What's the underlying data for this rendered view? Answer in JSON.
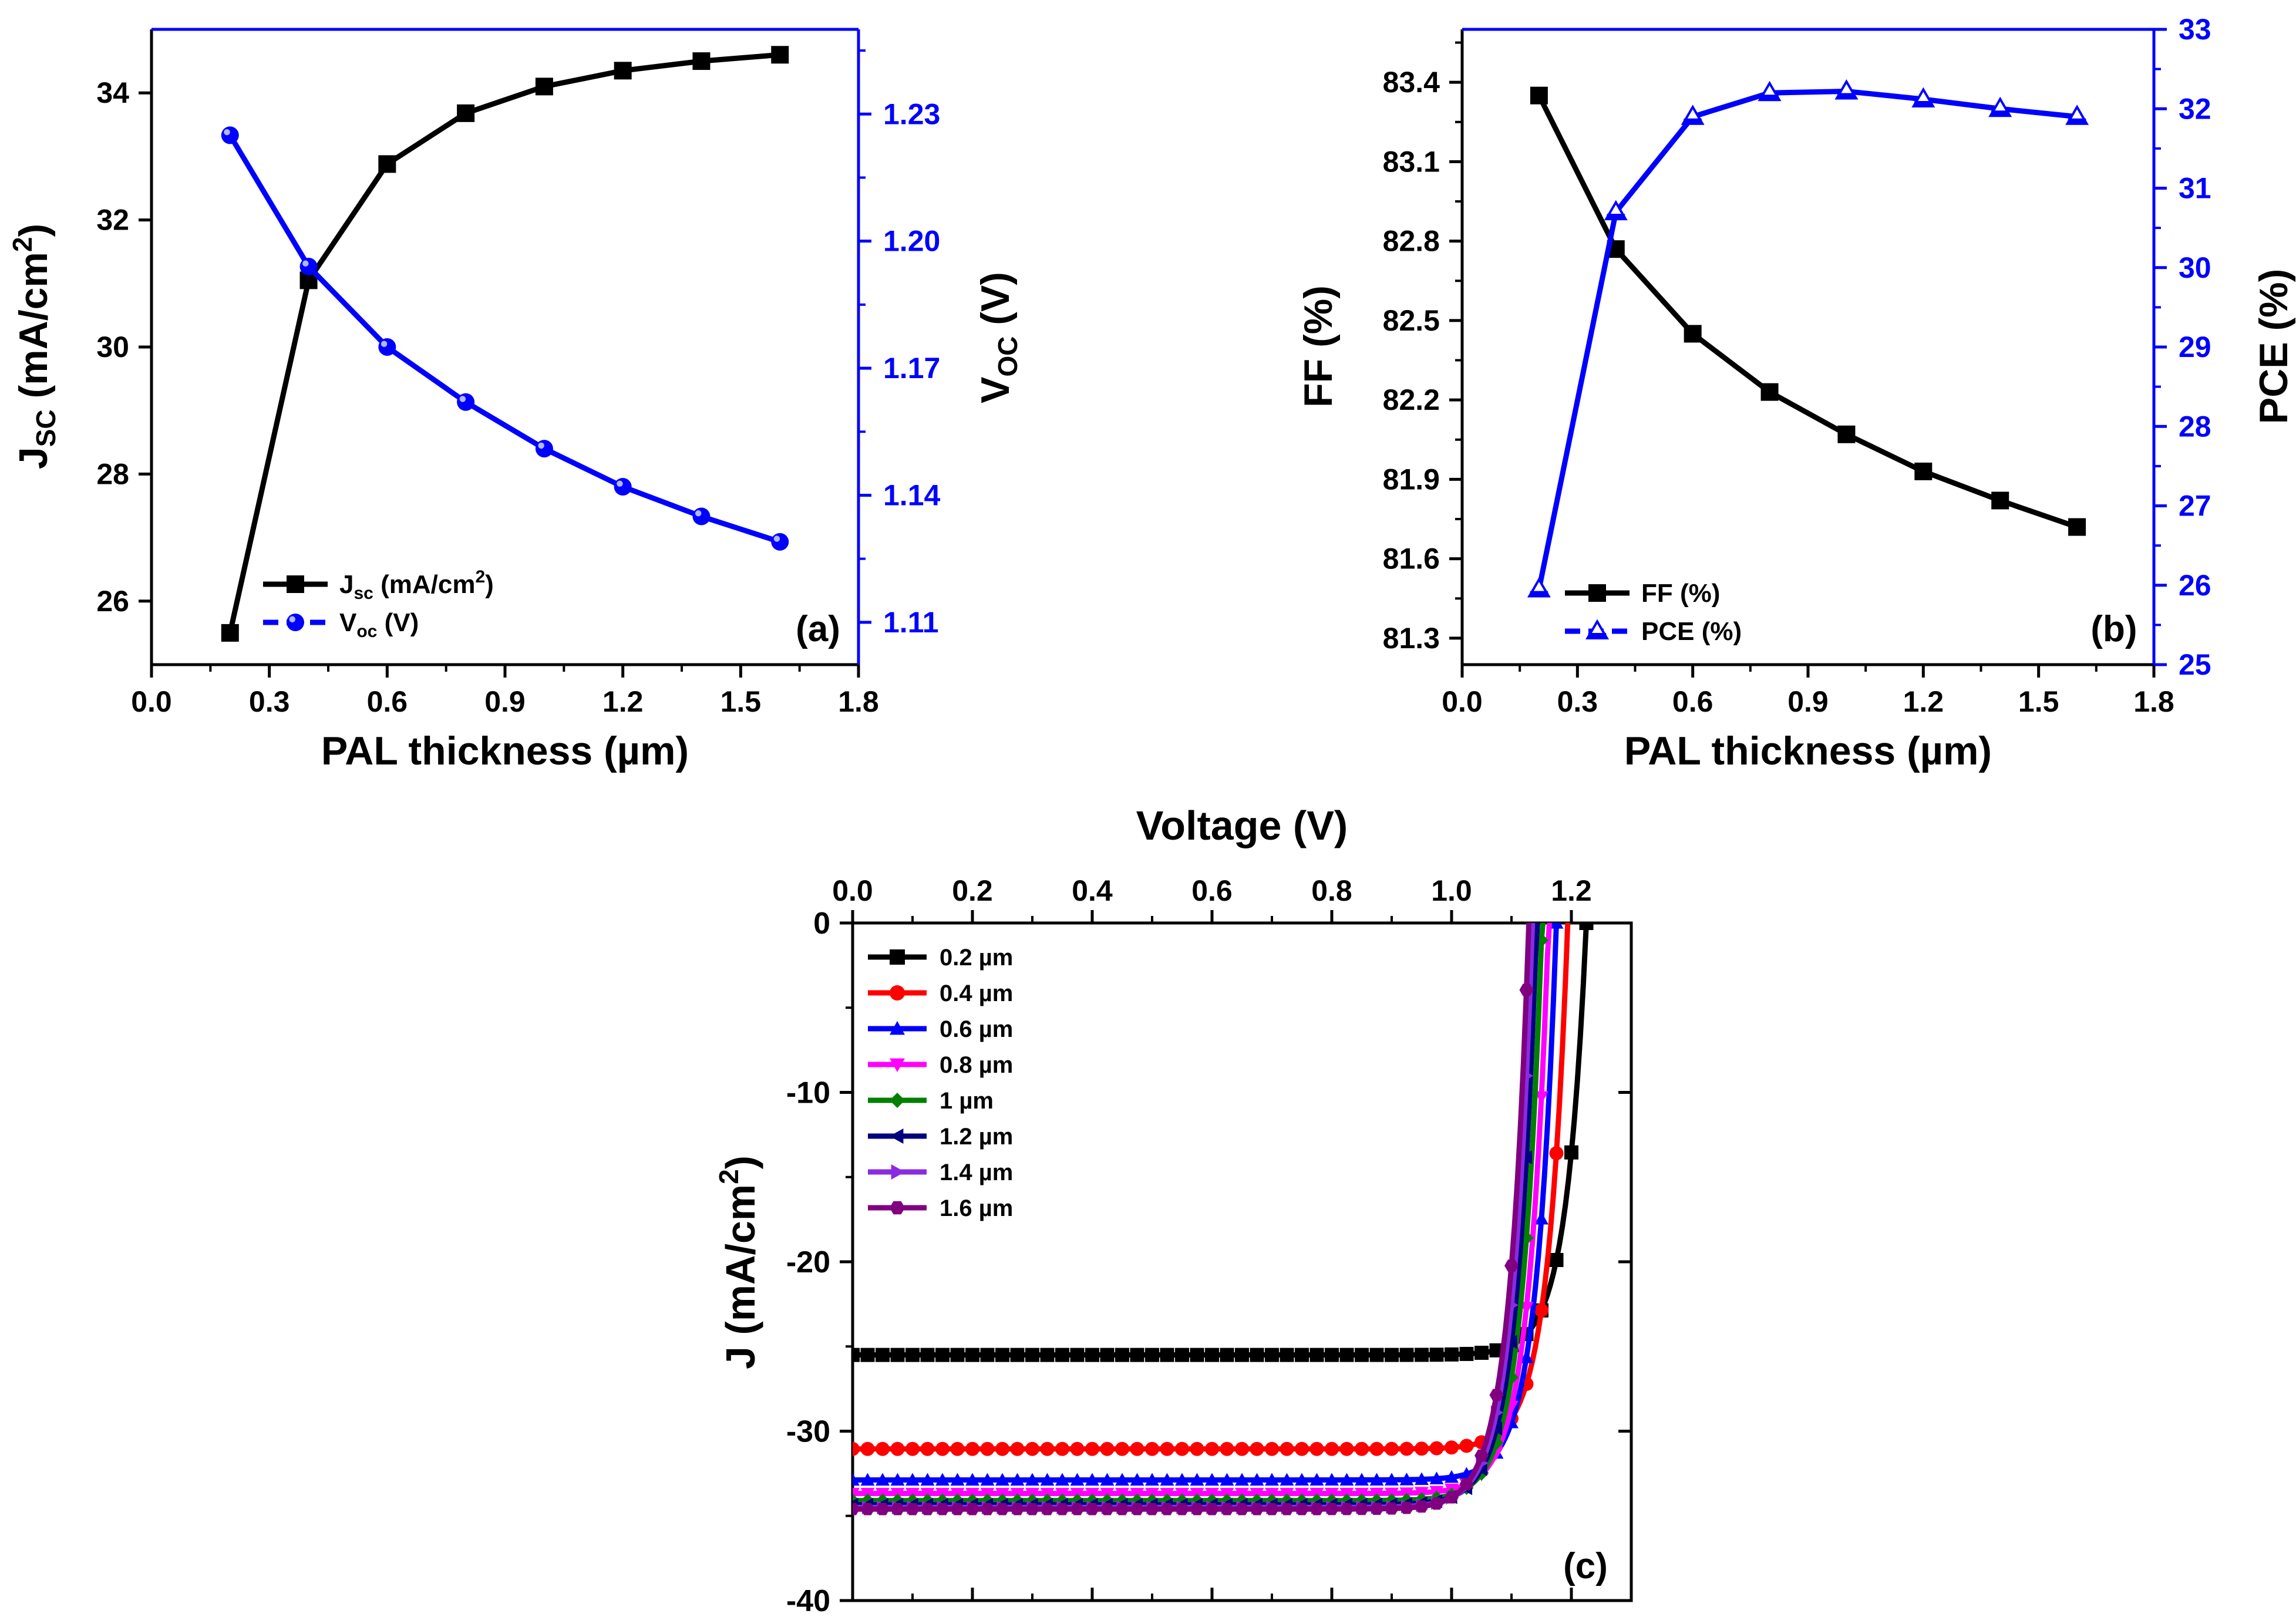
{
  "chart_data": [
    {
      "id": "a",
      "type": "line",
      "panel_label": "(a)",
      "xlabel": "PAL thickness (µm)",
      "ylabel": "J",
      "ylabel_sub": "SC",
      "ylabel_rest": " (mA/cm",
      "ylabel_sup": "2",
      "ylabel_end": ")",
      "y2label": "V",
      "y2label_sub": "OC",
      "y2label_rest": " (V)",
      "xlim": [
        0.0,
        1.8
      ],
      "xticks": [
        "0.0",
        "0.3",
        "0.6",
        "0.9",
        "1.2",
        "1.5",
        "1.8"
      ],
      "ylim": [
        25.0,
        35.0
      ],
      "yticks": [
        "26",
        "28",
        "30",
        "32",
        "34"
      ],
      "y2lim": [
        1.1,
        1.25
      ],
      "y2ticks": [
        "1.11",
        "1.14",
        "1.17",
        "1.20",
        "1.23"
      ],
      "legend_position": "bottom-left",
      "x": [
        0.2,
        0.4,
        0.6,
        0.8,
        1.0,
        1.2,
        1.4,
        1.6
      ],
      "series": [
        {
          "name": "Jsc",
          "legend_main": "J",
          "legend_sub": "sc",
          "legend_rest": " (mA/cm",
          "legend_sup": "2",
          "legend_end": ")",
          "axis": "left",
          "color": "#000000",
          "marker": "square",
          "values": [
            25.5,
            31.05,
            32.88,
            33.68,
            34.1,
            34.35,
            34.5,
            34.6
          ]
        },
        {
          "name": "Voc",
          "legend_main": "V",
          "legend_sub": "oc",
          "legend_rest": " (V)",
          "legend_sup": "",
          "legend_end": "",
          "axis": "right",
          "color": "#0000ff",
          "marker": "sphere",
          "values": [
            1.225,
            1.194,
            1.175,
            1.162,
            1.151,
            1.142,
            1.135,
            1.129
          ]
        }
      ]
    },
    {
      "id": "b",
      "type": "line",
      "panel_label": "(b)",
      "xlabel": "PAL thickness (µm)",
      "ylabel": "FF (%)",
      "y2label": "PCE (%)",
      "xlim": [
        0.0,
        1.8
      ],
      "xticks": [
        "0.0",
        "0.3",
        "0.6",
        "0.9",
        "1.2",
        "1.5",
        "1.8"
      ],
      "ylim": [
        81.2,
        83.6
      ],
      "yticks": [
        "81.3",
        "81.6",
        "81.9",
        "82.2",
        "82.5",
        "82.8",
        "83.1",
        "83.4"
      ],
      "y2lim": [
        25,
        33
      ],
      "y2ticks": [
        "25",
        "26",
        "27",
        "28",
        "29",
        "30",
        "31",
        "32",
        "33"
      ],
      "legend_position": "bottom-left",
      "x": [
        0.2,
        0.4,
        0.6,
        0.8,
        1.0,
        1.2,
        1.4,
        1.6
      ],
      "series": [
        {
          "name": "FF (%)",
          "axis": "left",
          "color": "#000000",
          "marker": "square",
          "values": [
            83.35,
            82.77,
            82.45,
            82.23,
            82.07,
            81.93,
            81.82,
            81.72
          ]
        },
        {
          "name": "PCE (%)",
          "axis": "right",
          "color": "#0000ff",
          "marker": "triangle",
          "values": [
            25.95,
            30.7,
            31.9,
            32.2,
            32.22,
            32.12,
            32.0,
            31.9
          ]
        }
      ]
    },
    {
      "id": "c",
      "type": "line",
      "panel_label": "(c)",
      "xlabel": "Voltage (V)",
      "xlabel_position": "top",
      "ylabel": "J (mA/cm",
      "ylabel_sup": "2",
      "ylabel_end": ")",
      "xlim": [
        0.0,
        1.3
      ],
      "xticks": [
        "0.0",
        "0.2",
        "0.4",
        "0.6",
        "0.8",
        "1.0",
        "1.2"
      ],
      "ylim": [
        -40,
        0
      ],
      "yticks": [
        "0",
        "-10",
        "-20",
        "-30",
        "-40"
      ],
      "legend_position": "top-left",
      "series": [
        {
          "name": "0.2 µm",
          "color": "#000000",
          "marker": "square",
          "jsc": 25.5,
          "voc": 1.225
        },
        {
          "name": "0.4 µm",
          "color": "#ff0000",
          "marker": "circle",
          "jsc": 31.05,
          "voc": 1.194
        },
        {
          "name": "0.6 µm",
          "color": "#0000ff",
          "marker": "triangle-up",
          "jsc": 32.88,
          "voc": 1.175
        },
        {
          "name": "0.8 µm",
          "color": "#ff00ff",
          "marker": "triangle-down",
          "jsc": 33.68,
          "voc": 1.162
        },
        {
          "name": "1 µm",
          "color": "#008000",
          "marker": "diamond",
          "jsc": 34.1,
          "voc": 1.151
        },
        {
          "name": "1.2 µm",
          "color": "#000080",
          "marker": "triangle-left",
          "jsc": 34.35,
          "voc": 1.142
        },
        {
          "name": "1.4 µm",
          "color": "#8a2be2",
          "marker": "triangle-right",
          "jsc": 34.5,
          "voc": 1.135
        },
        {
          "name": "1.6 µm",
          "color": "#800080",
          "marker": "hexagon",
          "jsc": 34.6,
          "voc": 1.129
        }
      ]
    }
  ]
}
